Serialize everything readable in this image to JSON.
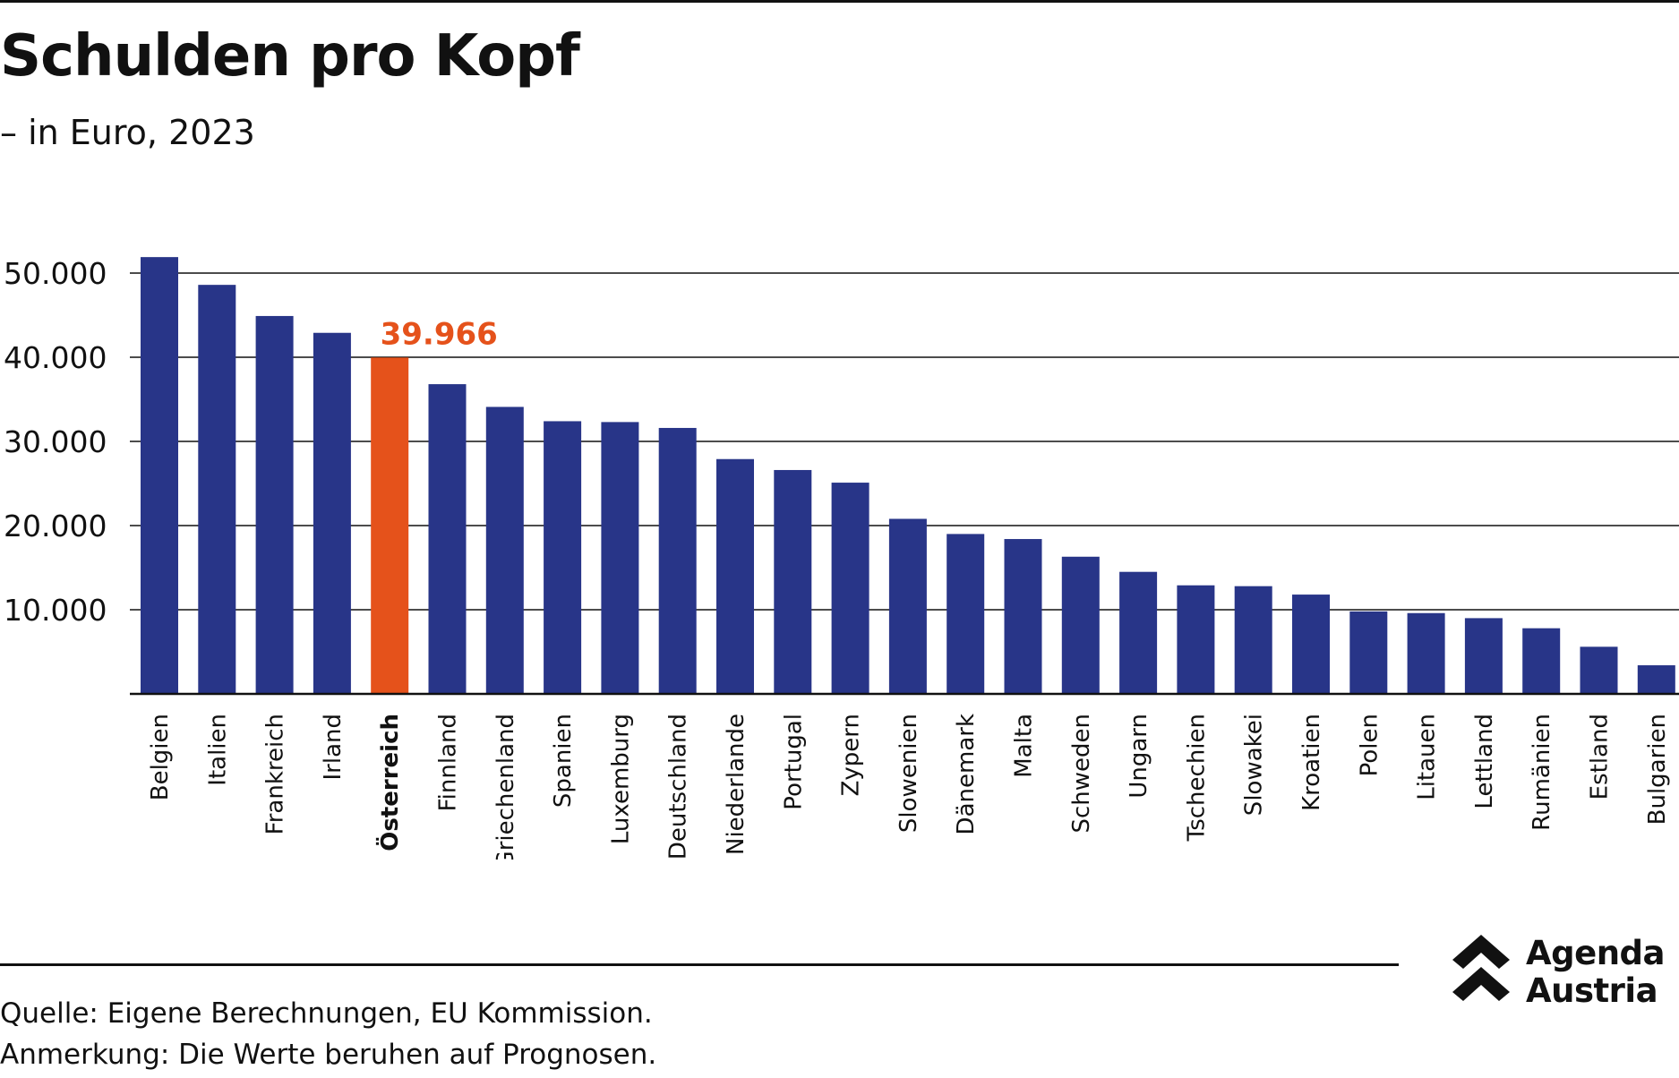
{
  "title": "Schulden pro Kopf",
  "subtitle": "– in Euro, 2023",
  "source": "Quelle: Eigene Berechnungen, EU Kommission.",
  "note": "Anmerkung: Die Werte beruhen auf Prognosen.",
  "logo": {
    "line1": "Agenda",
    "line2": "Austria"
  },
  "colors": {
    "bar": "#283588",
    "highlight": "#E5521B",
    "text": "#111111",
    "grid": "#111111"
  },
  "chart_data": {
    "type": "bar",
    "title": "Schulden pro Kopf",
    "subtitle": "– in Euro, 2023",
    "categories": [
      "Belgien",
      "Italien",
      "Frankreich",
      "Irland",
      "Österreich",
      "Finnland",
      "Griechenland",
      "Spanien",
      "Luxemburg",
      "Deutschland",
      "Niederlande",
      "Portugal",
      "Zypern",
      "Slowenien",
      "Dänemark",
      "Malta",
      "Schweden",
      "Ungarn",
      "Tschechien",
      "Slowakei",
      "Kroatien",
      "Polen",
      "Litauen",
      "Lettland",
      "Rumänien",
      "Estland",
      "Bulgarien"
    ],
    "values": [
      51900,
      48600,
      44900,
      42900,
      39966,
      36800,
      34100,
      32400,
      32300,
      31600,
      27900,
      26600,
      25100,
      20800,
      19000,
      18400,
      16300,
      14500,
      12900,
      12800,
      11800,
      9800,
      9600,
      9000,
      7800,
      5600,
      3400
    ],
    "highlight_index": 4,
    "highlight_label": "39.966",
    "ylim": [
      0,
      53000
    ],
    "yticks": [
      {
        "value": 10000,
        "label": "10.000"
      },
      {
        "value": 20000,
        "label": "20.000"
      },
      {
        "value": 30000,
        "label": "30.000"
      },
      {
        "value": 40000,
        "label": "40.000"
      },
      {
        "value": 50000,
        "label": "50.000"
      }
    ],
    "xlabel": "",
    "ylabel": "",
    "grid": true,
    "legend": "none"
  }
}
